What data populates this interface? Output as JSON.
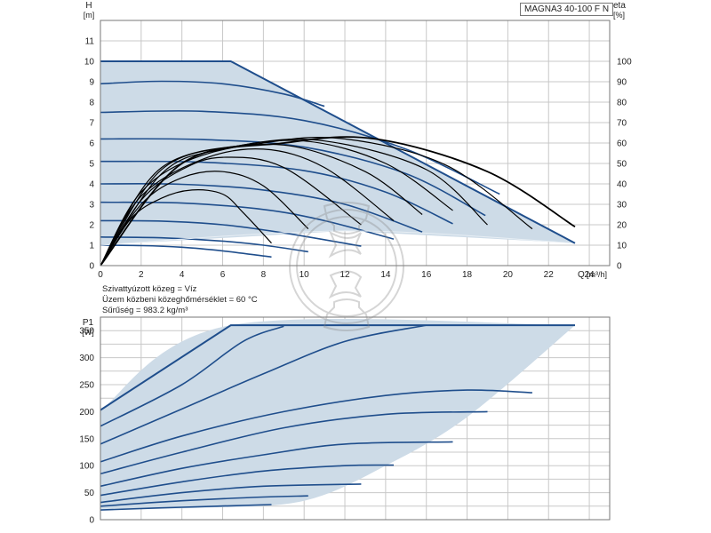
{
  "model": "MAGNA3 40-100 F N",
  "info": {
    "medium": "Szivattyúzott közeg = Víz",
    "temperature": "Üzem közbeni közeghőmérséklet = 60 °C",
    "density": "Sűrűség = 983.2 kg/m³"
  },
  "colors": {
    "curve": "#1f4e8c",
    "area": "#cddbe7",
    "eta": "#000000",
    "grid": "#c8c8c8"
  },
  "chart_data": [
    {
      "type": "line",
      "title": "",
      "ylabel": "H",
      "yunit": "[m]",
      "y2label": "eta",
      "y2unit": "[%]",
      "xlabel": "Q",
      "xunit": "[m³/h]",
      "xlim": [
        0,
        25
      ],
      "ylim": [
        0,
        12
      ],
      "y2lim": [
        0,
        120
      ],
      "grid": true,
      "xticks": [
        "0",
        "2",
        "4",
        "6",
        "8",
        "10",
        "12",
        "14",
        "16",
        "18",
        "20",
        "22",
        "24"
      ],
      "yticks": [
        "0",
        "1",
        "2",
        "3",
        "4",
        "5",
        "6",
        "7",
        "8",
        "9",
        "10",
        "11"
      ],
      "y2ticks": [
        "0",
        "10",
        "20",
        "30",
        "40",
        "50",
        "60",
        "70",
        "80",
        "90",
        "100"
      ],
      "max_curve": [
        [
          0,
          10
        ],
        [
          6.4,
          10
        ],
        [
          23.3,
          1.1
        ]
      ],
      "min_curve": [
        [
          0,
          1
        ],
        [
          12,
          1.7
        ],
        [
          23.3,
          1.1
        ]
      ],
      "head_curves": [
        {
          "name": "",
          "points": [
            [
              0,
              1
            ],
            [
              2,
              0.98
            ],
            [
              4,
              0.9
            ],
            [
              6,
              0.72
            ],
            [
              8.4,
              0.42
            ]
          ]
        },
        {
          "name": "",
          "points": [
            [
              0,
              1.4
            ],
            [
              3,
              1.36
            ],
            [
              6,
              1.2
            ],
            [
              8,
              1.0
            ],
            [
              10.2,
              0.68
            ]
          ]
        },
        {
          "name": "",
          "points": [
            [
              0,
              2.2
            ],
            [
              3,
              2.18
            ],
            [
              6,
              2.0
            ],
            [
              9,
              1.6
            ],
            [
              12.8,
              0.95
            ]
          ]
        },
        {
          "name": "",
          "points": [
            [
              0,
              3.1
            ],
            [
              4,
              3.06
            ],
            [
              8,
              2.75
            ],
            [
              11,
              2.2
            ],
            [
              14.4,
              1.3
            ]
          ]
        },
        {
          "name": "",
          "points": [
            [
              0,
              4.0
            ],
            [
              4,
              3.98
            ],
            [
              8,
              3.7
            ],
            [
              12,
              3.0
            ],
            [
              15.8,
              1.65
            ]
          ]
        },
        {
          "name": "",
          "points": [
            [
              0,
              5.1
            ],
            [
              5,
              5.06
            ],
            [
              10,
              4.65
            ],
            [
              14,
              3.6
            ],
            [
              17.3,
              2.05
            ]
          ]
        },
        {
          "name": "",
          "points": [
            [
              0,
              6.2
            ],
            [
              5,
              6.17
            ],
            [
              10,
              5.8
            ],
            [
              15,
              4.5
            ],
            [
              18.9,
              2.45
            ]
          ]
        },
        {
          "name": "",
          "points": [
            [
              0,
              7.5
            ],
            [
              5,
              7.55
            ],
            [
              10,
              7.1
            ],
            [
              15,
              5.7
            ],
            [
              19.6,
              3.5
            ]
          ]
        },
        {
          "name": "",
          "points": [
            [
              0,
              8.9
            ],
            [
              3,
              9.02
            ],
            [
              6,
              8.9
            ],
            [
              9,
              8.4
            ],
            [
              11,
              7.8
            ]
          ]
        }
      ],
      "eta_curves": [
        {
          "name": "",
          "points": [
            [
              0,
              0
            ],
            [
              1.5,
              23
            ],
            [
              3,
              33
            ],
            [
              4.5,
              37
            ],
            [
              6,
              35
            ],
            [
              7,
              26
            ],
            [
              8.4,
              11
            ]
          ]
        },
        {
          "name": "",
          "points": [
            [
              0,
              0
            ],
            [
              2,
              30
            ],
            [
              4,
              43
            ],
            [
              6,
              46
            ],
            [
              8,
              39
            ],
            [
              10.2,
              18
            ]
          ]
        },
        {
          "name": "",
          "points": [
            [
              0,
              0
            ],
            [
              2,
              32
            ],
            [
              4,
              47
            ],
            [
              6,
              53
            ],
            [
              9,
              48
            ],
            [
              12.8,
              20
            ]
          ]
        },
        {
          "name": "",
          "points": [
            [
              0,
              0
            ],
            [
              2,
              34
            ],
            [
              5,
              52
            ],
            [
              8,
              57
            ],
            [
              11,
              48
            ],
            [
              14.4,
              22
            ]
          ]
        },
        {
          "name": "",
          "points": [
            [
              0,
              0
            ],
            [
              2,
              36
            ],
            [
              5,
              54
            ],
            [
              9,
              59
            ],
            [
              13,
              46
            ],
            [
              15.8,
              25
            ]
          ]
        },
        {
          "name": "",
          "points": [
            [
              0,
              0
            ],
            [
              3,
              45
            ],
            [
              6,
              57
            ],
            [
              10,
              61
            ],
            [
              14,
              50
            ],
            [
              17.3,
              27
            ]
          ]
        },
        {
          "name": "",
          "points": [
            [
              0,
              0
            ],
            [
              3,
              47
            ],
            [
              7,
              59
            ],
            [
              11,
              61
            ],
            [
              16,
              47
            ],
            [
              19,
              20
            ]
          ]
        },
        {
          "name": "",
          "points": [
            [
              0,
              0
            ],
            [
              3,
              48
            ],
            [
              8,
              60
            ],
            [
              12,
              62
            ],
            [
              17,
              49
            ],
            [
              21.2,
              18
            ]
          ]
        },
        {
          "name": "",
          "points": [
            [
              0,
              0
            ],
            [
              4,
              50
            ],
            [
              9,
              60
            ],
            [
              13.5,
              62
            ],
            [
              19,
              46
            ],
            [
              23.3,
              19
            ]
          ]
        }
      ]
    },
    {
      "type": "line",
      "title": "",
      "ylabel": "P1",
      "yunit": "[W]",
      "xlim": [
        0,
        25
      ],
      "ylim": [
        0,
        375
      ],
      "grid": true,
      "yticks": [
        "0",
        "50",
        "100",
        "150",
        "200",
        "250",
        "300",
        "350"
      ],
      "max_curve": [
        [
          0,
          203
        ],
        [
          6.4,
          360
        ],
        [
          23.3,
          360
        ]
      ],
      "min_curve": [
        [
          0,
          20
        ],
        [
          5,
          22
        ],
        [
          10,
          35
        ],
        [
          14,
          100
        ],
        [
          18,
          190
        ],
        [
          23.3,
          360
        ]
      ],
      "power_curves": [
        {
          "name": "",
          "points": [
            [
              0,
              203
            ],
            [
              6.4,
              360
            ],
            [
              23.3,
              360
            ]
          ]
        },
        {
          "name": "",
          "points": [
            [
              0,
              173
            ],
            [
              4,
              250
            ],
            [
              7,
              330
            ],
            [
              9,
              358
            ]
          ]
        },
        {
          "name": "",
          "points": [
            [
              0,
              140
            ],
            [
              4,
              205
            ],
            [
              8,
              270
            ],
            [
              12,
              330
            ],
            [
              16,
              360
            ]
          ]
        },
        {
          "name": "",
          "points": [
            [
              0,
              107
            ],
            [
              4,
              155
            ],
            [
              9,
              200
            ],
            [
              14,
              230
            ],
            [
              18,
              240
            ],
            [
              21.2,
              235
            ]
          ]
        },
        {
          "name": "",
          "points": [
            [
              0,
              85
            ],
            [
              4,
              125
            ],
            [
              9,
              170
            ],
            [
              14,
              195
            ],
            [
              19,
              200
            ]
          ]
        },
        {
          "name": "",
          "points": [
            [
              0,
              62
            ],
            [
              4,
              95
            ],
            [
              8,
              120
            ],
            [
              12,
              140
            ],
            [
              17.3,
              144
            ]
          ]
        },
        {
          "name": "",
          "points": [
            [
              0,
              45
            ],
            [
              4,
              70
            ],
            [
              8,
              90
            ],
            [
              12,
              100
            ],
            [
              14.4,
              101
            ]
          ]
        },
        {
          "name": "",
          "points": [
            [
              0,
              32
            ],
            [
              4,
              50
            ],
            [
              8,
              62
            ],
            [
              12.8,
              66
            ]
          ]
        },
        {
          "name": "",
          "points": [
            [
              0,
              25
            ],
            [
              4,
              35
            ],
            [
              8,
              42
            ],
            [
              10.2,
              44
            ]
          ]
        },
        {
          "name": "",
          "points": [
            [
              0,
              18
            ],
            [
              4,
              23
            ],
            [
              8.4,
              28
            ]
          ]
        }
      ]
    }
  ]
}
